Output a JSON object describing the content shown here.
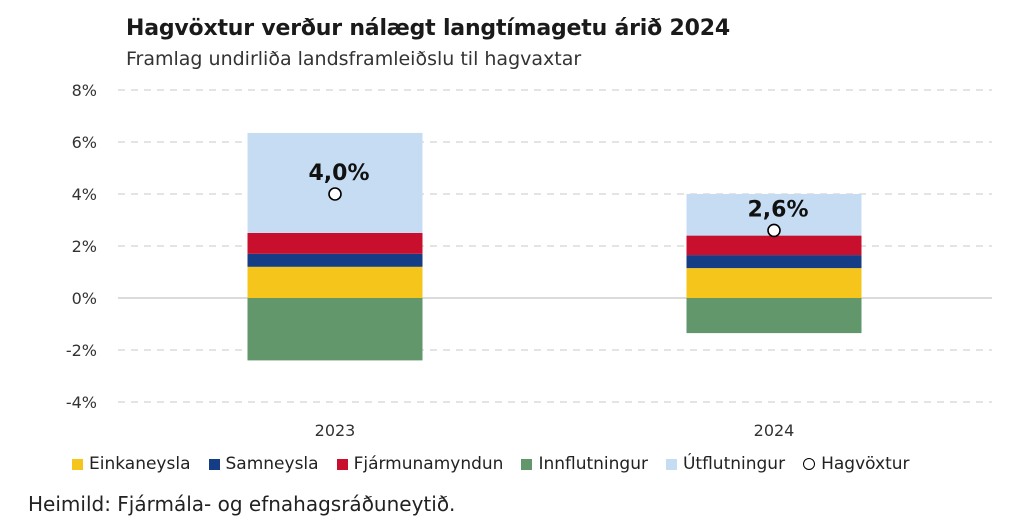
{
  "header": {
    "title": "Hagvöxtur verður nálægt langtímagetu árið 2024",
    "subtitle": "Framlag undirliða landsframleiðslu til hagvaxtar"
  },
  "source": "Heimild: Fjármála- og efnahagsráðuneytið.",
  "chart_data": {
    "type": "bar",
    "stacked": true,
    "categories": [
      "2023",
      "2024"
    ],
    "ylim": [
      -4,
      8
    ],
    "yticks": [
      8,
      6,
      4,
      2,
      0,
      -2,
      -4
    ],
    "ytick_labels": [
      "8%",
      "6%",
      "4%",
      "2%",
      "0%",
      "-2%",
      "-4%"
    ],
    "grid": true,
    "legend_position": "bottom",
    "series": [
      {
        "name": "Einkaneysla",
        "color": "#f5c51c",
        "values": [
          1.2,
          1.15
        ]
      },
      {
        "name": "Samneysla",
        "color": "#143d86",
        "values": [
          0.5,
          0.5
        ]
      },
      {
        "name": "Fjármunamyndun",
        "color": "#c8102e",
        "values": [
          0.8,
          0.75
        ]
      },
      {
        "name": "Innflutningur",
        "color": "#62976b",
        "values": [
          -2.4,
          -1.35
        ]
      },
      {
        "name": "Útflutningur",
        "color": "#c5dcf3",
        "values": [
          3.85,
          1.6
        ]
      }
    ],
    "marker_series": {
      "name": "Hagvöxtur",
      "values": [
        4.0,
        2.6
      ],
      "labels": [
        "4,0%",
        "2,6%"
      ]
    }
  }
}
